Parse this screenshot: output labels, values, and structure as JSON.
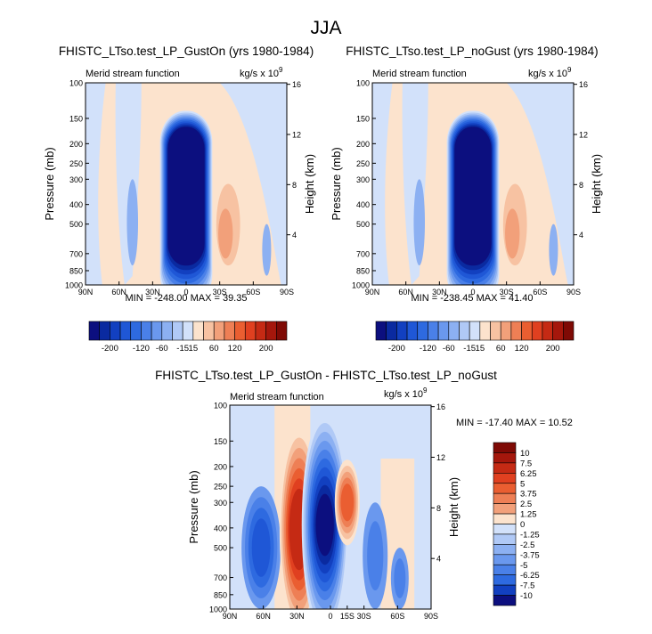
{
  "page": {
    "title": "JJA"
  },
  "colors": {
    "negative": [
      "#0c0f7f",
      "#0a2aa0",
      "#1240c0",
      "#1f57d6",
      "#2e6ae0",
      "#4a80e8",
      "#6a98ee",
      "#8cb0f2",
      "#b0c9f6",
      "#d2e1fa"
    ],
    "positive": [
      "#fce3cd",
      "#f7c2a2",
      "#f2a07a",
      "#ee7f55",
      "#ea5e31",
      "#e04020",
      "#c52a14",
      "#a5170c",
      "#7f0a05"
    ]
  },
  "panels": {
    "left": {
      "title": "FHISTC_LTso.test_LP_GustOn (yrs 1980-1984)",
      "left_label": "Merid stream function",
      "right_label_base": "kg/s x 10",
      "right_label_exp": "9",
      "stats": "MIN = -248.00   MAX = 39.35"
    },
    "right": {
      "title": "FHISTC_LTso.test_LP_noGust (yrs 1980-1984)",
      "left_label": "Merid stream function",
      "right_label_base": "kg/s x 10",
      "right_label_exp": "9",
      "stats": "MIN = -238.45   MAX = 41.40"
    },
    "diff": {
      "title": "FHISTC_LTso.test_LP_GustOn - FHISTC_LTso.test_LP_noGust",
      "left_label": "Merid stream function",
      "right_label_base": "kg/s x 10",
      "right_label_exp": "9",
      "stats": "MIN = -17.40   MAX = 10.52"
    }
  },
  "colorbars": {
    "horizontal_labels": [
      "-200",
      "-120",
      "-60",
      "-15",
      "15",
      "60",
      "120",
      "200"
    ],
    "diff_labels": [
      "10",
      "7.5",
      "6.25",
      "5",
      "3.75",
      "2.5",
      "1.25",
      "0",
      "-1.25",
      "-2.5",
      "-3.75",
      "-5",
      "-6.25",
      "-7.5",
      "-10"
    ]
  },
  "chart_data": [
    {
      "type": "heatmap",
      "title": "FHISTC_LTso.test_LP_GustOn (yrs 1980-1984)",
      "xlabel": "",
      "ylabel": "Pressure (mb)",
      "y2label": "Height (km)",
      "x_ticks": [
        "90N",
        "60N",
        "30N",
        "0",
        "30S",
        "60S",
        "90S"
      ],
      "y_ticks": [
        "100",
        "150",
        "200",
        "250",
        "300",
        "400",
        "500",
        "700",
        "850",
        "1000"
      ],
      "y2_ticks": [
        "16",
        "12",
        "8",
        "4"
      ],
      "xlim": [
        90,
        -90
      ],
      "ylim": [
        100,
        1000
      ],
      "y_scale": "log",
      "min": -248.0,
      "max": 39.35,
      "features": [
        {
          "kind": "neg_core",
          "lat": 0,
          "lat_width": 18,
          "p_top": 120,
          "p_bot": 900,
          "peak": -248
        },
        {
          "kind": "pos_cell",
          "lat": -40,
          "lat_width": 20,
          "p_top": 220,
          "p_bot": 800,
          "peak": 39.35
        },
        {
          "kind": "neg_cell",
          "lat": 48,
          "lat_width": 10,
          "p_top": 300,
          "p_bot": 800,
          "peak": -20
        },
        {
          "kind": "neg_cell",
          "lat": -72,
          "lat_width": 8,
          "p_top": 500,
          "p_bot": 900,
          "peak": -15
        }
      ]
    },
    {
      "type": "heatmap",
      "title": "FHISTC_LTso.test_LP_noGust (yrs 1980-1984)",
      "xlabel": "",
      "ylabel": "Pressure (mb)",
      "y2label": "Height (km)",
      "x_ticks": [
        "90N",
        "60N",
        "30N",
        "0",
        "30S",
        "60S",
        "90S"
      ],
      "y_ticks": [
        "100",
        "150",
        "200",
        "250",
        "300",
        "400",
        "500",
        "700",
        "850",
        "1000"
      ],
      "y2_ticks": [
        "16",
        "12",
        "8",
        "4"
      ],
      "xlim": [
        90,
        -90
      ],
      "ylim": [
        100,
        1000
      ],
      "y_scale": "log",
      "min": -238.45,
      "max": 41.4,
      "features": [
        {
          "kind": "neg_core",
          "lat": 0,
          "lat_width": 18,
          "p_top": 120,
          "p_bot": 900,
          "peak": -238.45
        },
        {
          "kind": "pos_cell",
          "lat": -40,
          "lat_width": 20,
          "p_top": 220,
          "p_bot": 800,
          "peak": 41.4
        },
        {
          "kind": "neg_cell",
          "lat": 48,
          "lat_width": 10,
          "p_top": 300,
          "p_bot": 800,
          "peak": -20
        },
        {
          "kind": "neg_cell",
          "lat": -72,
          "lat_width": 8,
          "p_top": 500,
          "p_bot": 900,
          "peak": -15
        }
      ]
    },
    {
      "type": "heatmap",
      "title": "FHISTC_LTso.test_LP_GustOn - FHISTC_LTso.test_LP_noGust",
      "xlabel": "",
      "ylabel": "Pressure (mb)",
      "y2label": "Height (km)",
      "x_ticks": [
        "90N",
        "60N",
        "30N",
        "0",
        "15S",
        "30S",
        "60S",
        "90S"
      ],
      "y_ticks": [
        "100",
        "150",
        "200",
        "250",
        "300",
        "400",
        "500",
        "700",
        "850",
        "1000"
      ],
      "y2_ticks": [
        "16",
        "12",
        "8",
        "4"
      ],
      "xlim": [
        90,
        -90
      ],
      "ylim": [
        100,
        1000
      ],
      "y_scale": "log",
      "min": -17.4,
      "max": 10.52,
      "levels": [
        -10,
        -7.5,
        -6.25,
        -5,
        -3.75,
        -2.5,
        -1.25,
        0,
        1.25,
        2.5,
        3.75,
        5,
        6.25,
        7.5,
        10
      ]
    }
  ]
}
